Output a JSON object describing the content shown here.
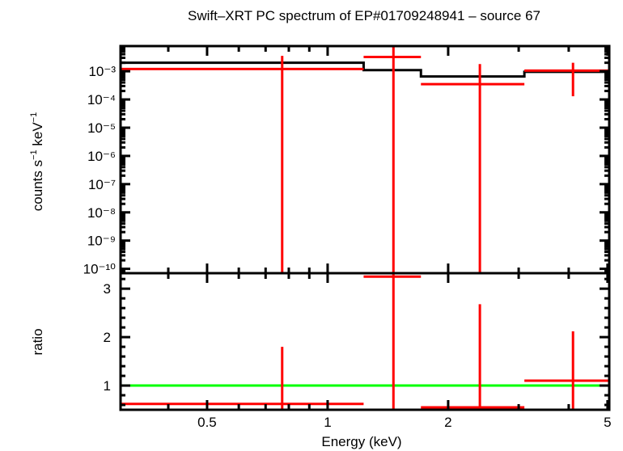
{
  "chart_data": [
    {
      "type": "line",
      "title": "Swift–XRT PC spectrum of EP#01709248941 – source 67",
      "xlabel": "Energy (keV)",
      "ylabel": "counts s⁻¹ keV⁻¹",
      "xscale": "log",
      "yscale": "log",
      "xlim": [
        0.304,
        5.05
      ],
      "ylim": [
        7e-11,
        0.0078
      ],
      "ytick_labels": [
        "10⁻³",
        "10⁻⁴",
        "10⁻⁵",
        "10⁻⁶",
        "10⁻⁷",
        "10⁻⁸",
        "10⁻⁹",
        "10⁻¹⁰"
      ],
      "series": [
        {
          "name": "data",
          "color": "#ff0000",
          "points": [
            {
              "x": 0.77,
              "xlo": 0.304,
              "xhi": 1.23,
              "y": 0.0012,
              "ylo": 0,
              "yhi": 0.0035
            },
            {
              "x": 1.46,
              "xlo": 1.23,
              "xhi": 1.71,
              "y": 0.0032,
              "ylo": 0,
              "yhi": 0.0078
            },
            {
              "x": 2.4,
              "xlo": 1.71,
              "xhi": 3.1,
              "y": 0.00035,
              "ylo": 0,
              "yhi": 0.0018
            },
            {
              "x": 4.1,
              "xlo": 3.1,
              "xhi": 5.05,
              "y": 0.00105,
              "ylo": 0.00013,
              "yhi": 0.002
            }
          ]
        },
        {
          "name": "model",
          "color": "#000000",
          "steps": [
            {
              "xlo": 0.304,
              "xhi": 1.23,
              "y": 0.002
            },
            {
              "xlo": 1.23,
              "xhi": 1.71,
              "y": 0.0011
            },
            {
              "xlo": 1.71,
              "xhi": 3.1,
              "y": 0.00065
            },
            {
              "xlo": 3.1,
              "xhi": 5.05,
              "y": 0.00095
            }
          ]
        }
      ]
    },
    {
      "type": "line",
      "xlabel": "Energy (keV)",
      "ylabel": "ratio",
      "xscale": "log",
      "xlim": [
        0.304,
        5.05
      ],
      "ylim": [
        0.5,
        3.32
      ],
      "xtick_labels": [
        "0.5",
        "1",
        "2",
        "5"
      ],
      "ytick_labels": [
        "1",
        "2",
        "3"
      ],
      "series": [
        {
          "name": "ratio",
          "color": "#ff0000",
          "points": [
            {
              "x": 0.77,
              "xlo": 0.304,
              "xhi": 1.23,
              "y": 0.62,
              "ylo": 0,
              "yhi": 1.8
            },
            {
              "x": 1.46,
              "xlo": 1.23,
              "xhi": 1.71,
              "y": 3.25,
              "ylo": 0,
              "yhi": 3.32
            },
            {
              "x": 2.4,
              "xlo": 1.71,
              "xhi": 3.1,
              "y": 0.55,
              "ylo": 0,
              "yhi": 2.68
            },
            {
              "x": 4.1,
              "xlo": 3.1,
              "xhi": 5.05,
              "y": 1.1,
              "ylo": 0,
              "yhi": 2.12
            }
          ]
        },
        {
          "name": "unity",
          "color": "#00ff00",
          "y": 1.0
        }
      ]
    }
  ],
  "labels": {
    "title": "Swift–XRT PC spectrum of EP#01709248941 – source 67",
    "ylabel_top": "counts s",
    "ylabel_top_sup1": "−1",
    "ylabel_top_mid": " keV",
    "ylabel_top_sup2": "−1",
    "ylabel_bottom": "ratio",
    "xlabel": "Energy (keV)"
  }
}
